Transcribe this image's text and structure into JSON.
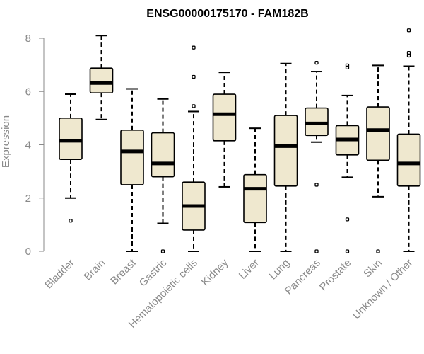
{
  "chart_data": {
    "type": "boxplot",
    "title": "ENSG00000175170 - FAM182B",
    "xlabel": "",
    "ylabel": "Expression",
    "ylim": [
      0,
      8.3
    ],
    "yticks": [
      0,
      2,
      4,
      6,
      8
    ],
    "box_fill": "#efe8cf",
    "categories": [
      "Bladder",
      "Brain",
      "Breast",
      "Gastric",
      "Hematopoietic cells",
      "Kidney",
      "Liver",
      "Lung",
      "Pancreas",
      "Prostate",
      "Skin",
      "Unknown / Other"
    ],
    "series": [
      {
        "name": "Bladder",
        "whisker_low": 2.0,
        "q1": 3.45,
        "median": 4.15,
        "q3": 5.0,
        "whisker_high": 5.9,
        "outliers": [
          1.15
        ]
      },
      {
        "name": "Brain",
        "whisker_low": 4.95,
        "q1": 5.95,
        "median": 6.32,
        "q3": 6.88,
        "whisker_high": 8.1,
        "outliers": []
      },
      {
        "name": "Breast",
        "whisker_low": 0.0,
        "q1": 2.5,
        "median": 3.75,
        "q3": 4.55,
        "whisker_high": 6.1,
        "outliers": []
      },
      {
        "name": "Gastric",
        "whisker_low": 1.05,
        "q1": 2.8,
        "median": 3.3,
        "q3": 4.45,
        "whisker_high": 5.72,
        "outliers": [
          0.0
        ]
      },
      {
        "name": "Hematopoietic cells",
        "whisker_low": 0.0,
        "q1": 0.8,
        "median": 1.7,
        "q3": 2.6,
        "whisker_high": 5.25,
        "outliers": [
          5.45,
          6.55,
          7.65
        ]
      },
      {
        "name": "Kidney",
        "whisker_low": 2.42,
        "q1": 4.15,
        "median": 5.15,
        "q3": 5.9,
        "whisker_high": 6.72,
        "outliers": []
      },
      {
        "name": "Liver",
        "whisker_low": 0.0,
        "q1": 1.08,
        "median": 2.35,
        "q3": 2.88,
        "whisker_high": 4.62,
        "outliers": []
      },
      {
        "name": "Lung",
        "whisker_low": 0.0,
        "q1": 2.45,
        "median": 3.95,
        "q3": 5.1,
        "whisker_high": 7.05,
        "outliers": []
      },
      {
        "name": "Pancreas",
        "whisker_low": 4.1,
        "q1": 4.35,
        "median": 4.8,
        "q3": 5.38,
        "whisker_high": 6.75,
        "outliers": [
          0.0,
          2.5,
          7.08
        ]
      },
      {
        "name": "Prostate",
        "whisker_low": 2.78,
        "q1": 3.62,
        "median": 4.2,
        "q3": 4.72,
        "whisker_high": 5.85,
        "outliers": [
          0.0,
          1.2,
          6.9,
          6.98
        ]
      },
      {
        "name": "Skin",
        "whisker_low": 2.05,
        "q1": 3.42,
        "median": 4.55,
        "q3": 5.42,
        "whisker_high": 6.98,
        "outliers": [
          0.0
        ]
      },
      {
        "name": "Unknown / Other",
        "whisker_low": 0.0,
        "q1": 2.45,
        "median": 3.3,
        "q3": 4.4,
        "whisker_high": 6.95,
        "outliers": [
          7.35,
          7.45,
          8.3
        ]
      }
    ]
  }
}
